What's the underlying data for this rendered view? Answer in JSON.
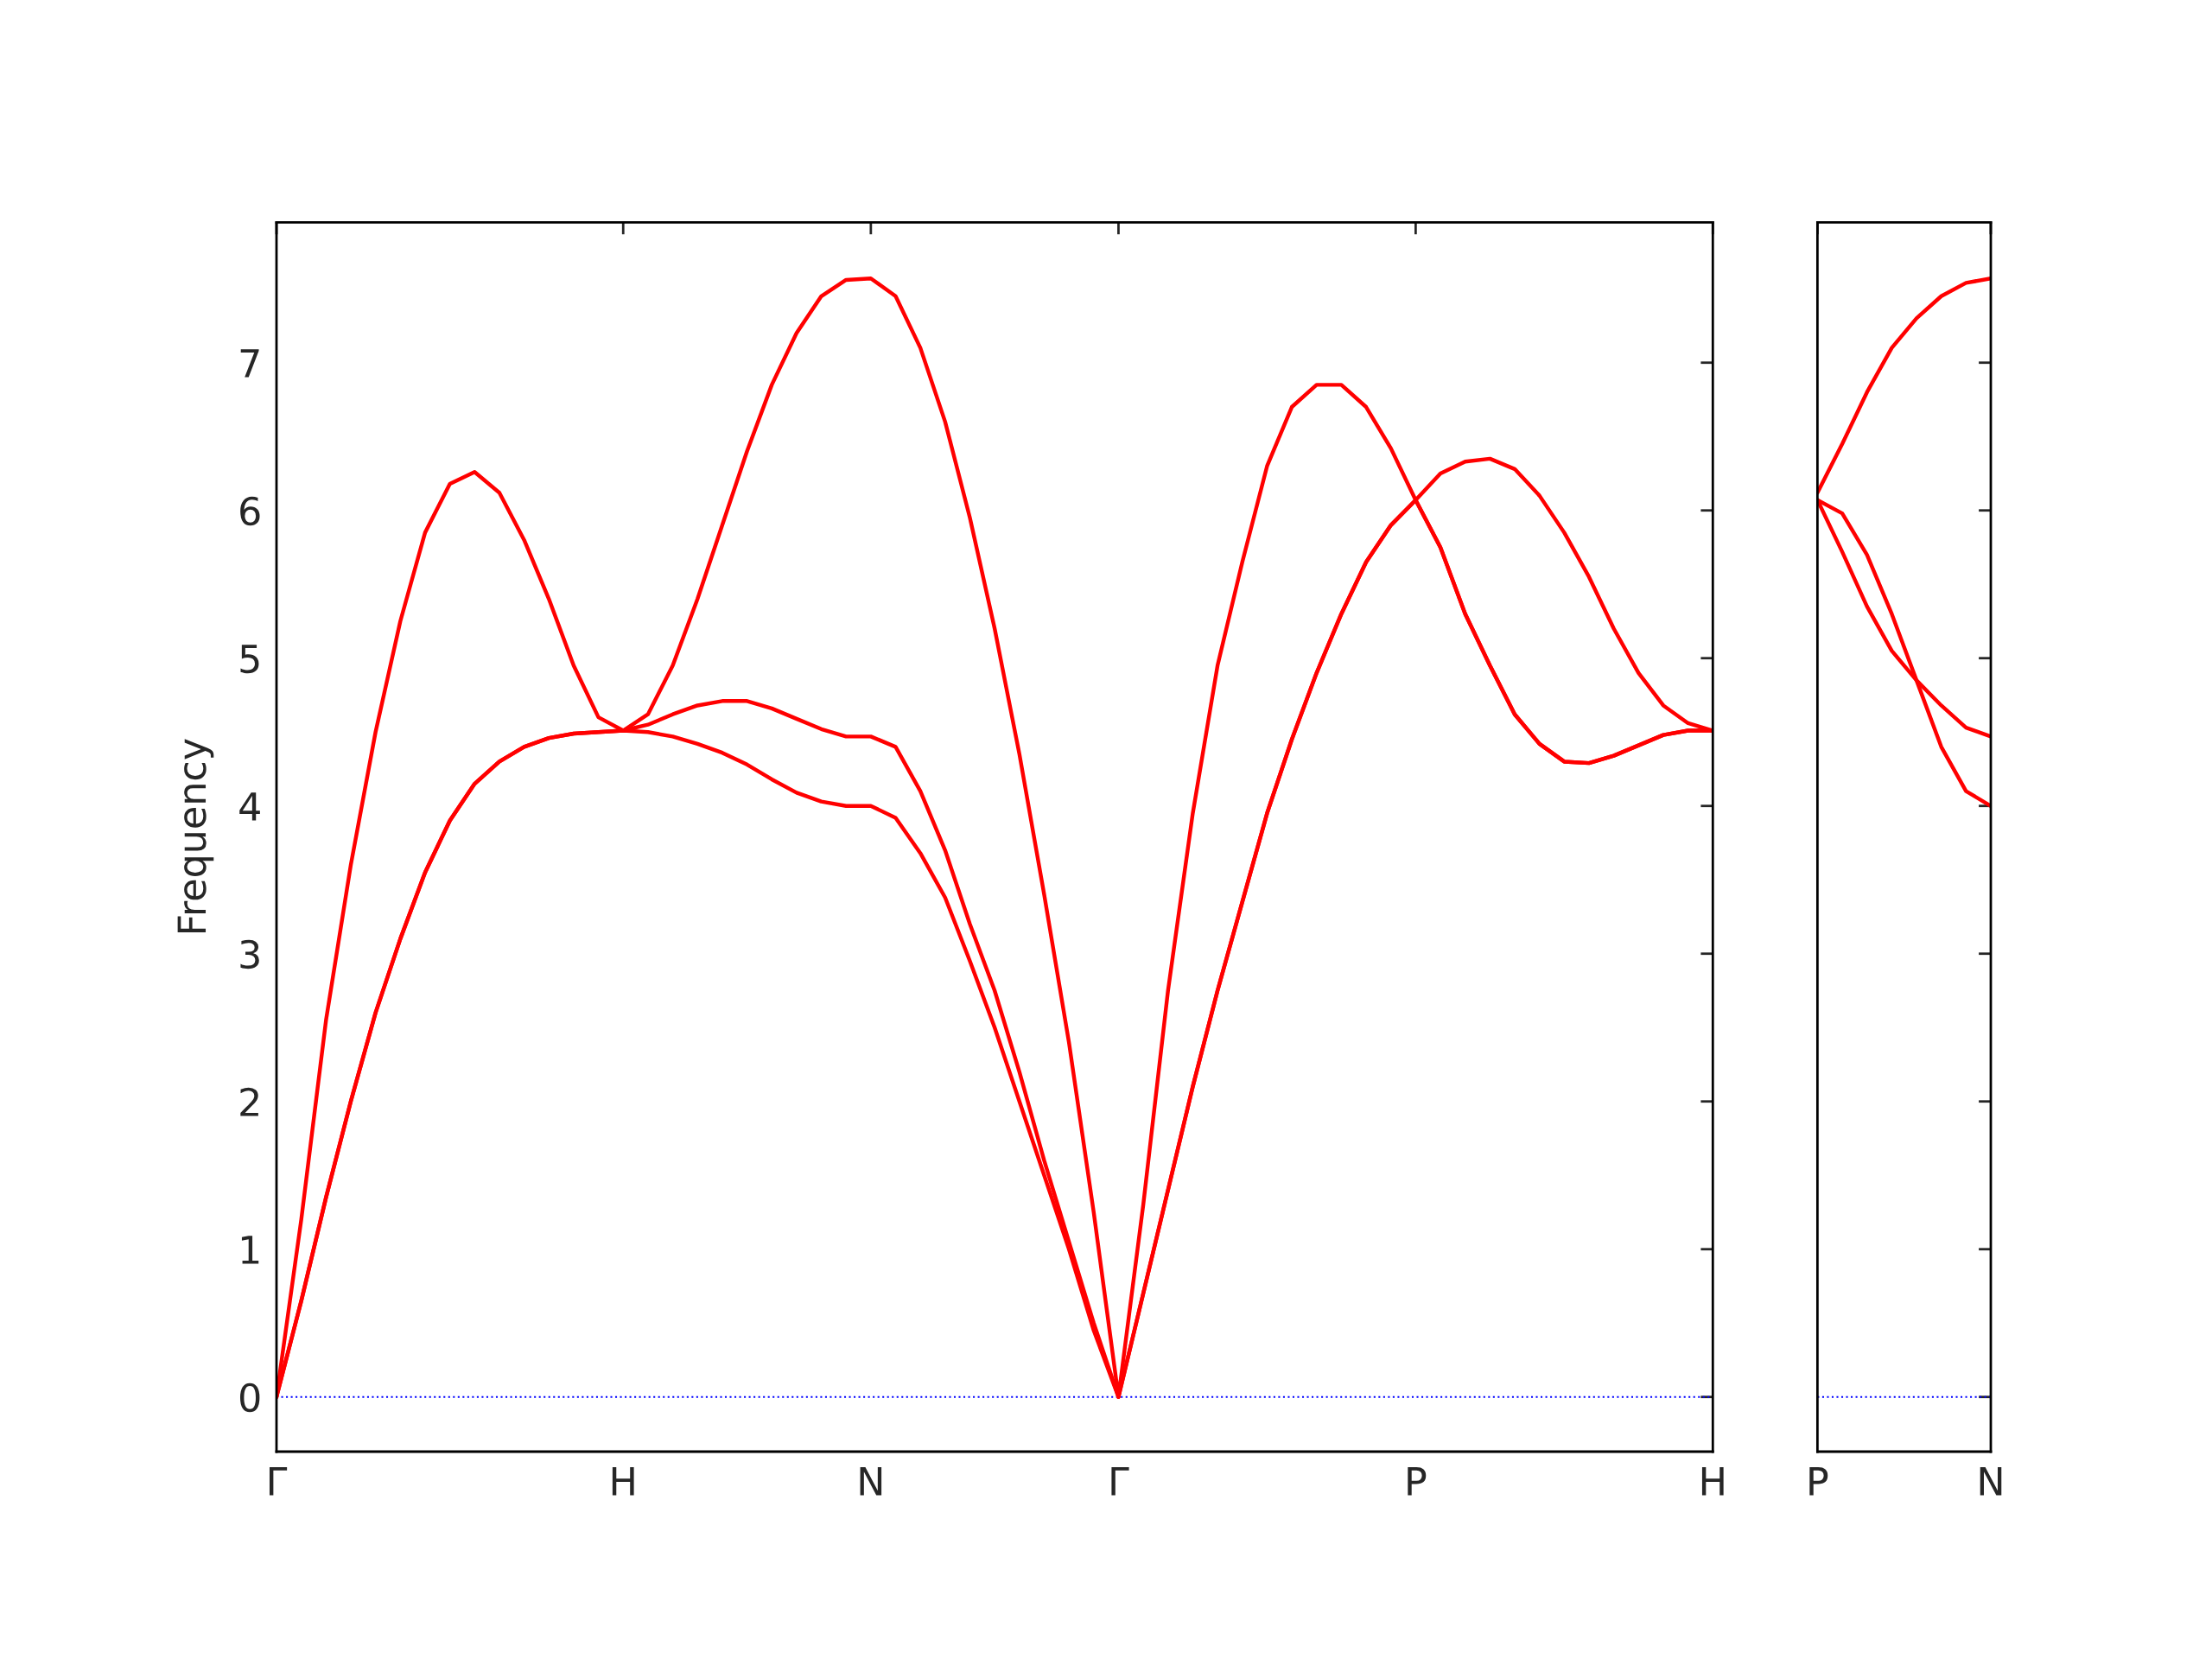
{
  "chart_data": [
    {
      "type": "line",
      "ylabel": "Frequency",
      "ylim": [
        -0.37,
        7.95
      ],
      "categories": [
        "Γ",
        null,
        null,
        null,
        null,
        null,
        null,
        null,
        null,
        null,
        null,
        null,
        null,
        null,
        "H",
        null,
        null,
        null,
        null,
        null,
        null,
        null,
        null,
        null,
        "N",
        null,
        null,
        null,
        null,
        null,
        null,
        null,
        null,
        null,
        "Γ",
        null,
        null,
        null,
        null,
        null,
        null,
        null,
        null,
        null,
        null,
        null,
        "P",
        null,
        null,
        null,
        null,
        null,
        null,
        null,
        null,
        null,
        null,
        null,
        "H"
      ],
      "yticks": [
        0,
        1,
        2,
        3,
        4,
        5,
        6,
        7
      ],
      "grid": false,
      "marker": "none",
      "line_style": "solid",
      "ref_lines": [
        {
          "axis": "y",
          "value": 0,
          "color": "#0000ff",
          "line_style": "dotted"
        }
      ],
      "series": [
        {
          "color": "#ff0000",
          "values": [
            0,
            0.65,
            1.35,
            2.0,
            2.6,
            3.1,
            3.55,
            3.9,
            4.15,
            4.3,
            4.4,
            4.46,
            4.49,
            4.5,
            4.51,
            4.5,
            4.47,
            4.42,
            4.36,
            4.28,
            4.18,
            4.09,
            4.03,
            4.0,
            4.0,
            3.92,
            3.68,
            3.38,
            2.95,
            2.5,
            2.0,
            1.5,
            1.0,
            0.45,
            0,
            0.7,
            1.4,
            2.1,
            2.75,
            3.35,
            3.95,
            4.45,
            4.9,
            5.3,
            5.65,
            5.9,
            6.07,
            5.75,
            5.3,
            4.95,
            4.62,
            4.42,
            4.3,
            4.29,
            4.34,
            4.41,
            4.48,
            4.51,
            4.51
          ]
        },
        {
          "color": "#ff0000",
          "values": [
            0,
            0.65,
            1.35,
            2.0,
            2.6,
            3.1,
            3.55,
            3.9,
            4.15,
            4.3,
            4.4,
            4.46,
            4.49,
            4.5,
            4.51,
            4.55,
            4.62,
            4.68,
            4.71,
            4.71,
            4.66,
            4.59,
            4.52,
            4.47,
            4.47,
            4.4,
            4.1,
            3.7,
            3.2,
            2.75,
            2.2,
            1.6,
            1.05,
            0.5,
            0,
            0.7,
            1.4,
            2.1,
            2.75,
            3.35,
            3.95,
            4.45,
            4.9,
            5.3,
            5.65,
            5.9,
            6.07,
            5.75,
            5.3,
            4.95,
            4.62,
            4.42,
            4.3,
            4.29,
            4.34,
            4.41,
            4.48,
            4.51,
            4.51
          ]
        },
        {
          "color": "#ff0000",
          "values": [
            0,
            1.2,
            2.55,
            3.6,
            4.5,
            5.25,
            5.85,
            6.18,
            6.26,
            6.12,
            5.8,
            5.4,
            4.95,
            4.6,
            4.51,
            4.62,
            4.95,
            5.4,
            5.9,
            6.4,
            6.85,
            7.2,
            7.45,
            7.56,
            7.57,
            7.45,
            7.1,
            6.6,
            5.95,
            5.2,
            4.35,
            3.4,
            2.4,
            1.25,
            0,
            1.3,
            2.75,
            3.95,
            4.95,
            5.65,
            6.3,
            6.7,
            6.85,
            6.85,
            6.7,
            6.42,
            6.07,
            6.25,
            6.33,
            6.35,
            6.28,
            6.1,
            5.85,
            5.55,
            5.2,
            4.9,
            4.68,
            4.56,
            4.51
          ]
        }
      ]
    },
    {
      "type": "line",
      "ylim": [
        -0.37,
        7.95
      ],
      "tick_labels": "x",
      "categories": [
        "P",
        null,
        null,
        null,
        null,
        null,
        null,
        "N"
      ],
      "yticks": [
        0,
        1,
        2,
        3,
        4,
        5,
        6,
        7
      ],
      "grid": false,
      "marker": "none",
      "line_style": "solid",
      "ref_lines": [
        {
          "axis": "y",
          "value": 0,
          "color": "#0000ff",
          "line_style": "dotted"
        }
      ],
      "series": [
        {
          "color": "#ff0000",
          "values": [
            6.07,
            5.72,
            5.35,
            5.05,
            4.85,
            4.4,
            4.1,
            4.0
          ]
        },
        {
          "color": "#ff0000",
          "values": [
            6.07,
            5.98,
            5.7,
            5.3,
            4.85,
            4.68,
            4.53,
            4.47
          ]
        },
        {
          "color": "#ff0000",
          "values": [
            6.12,
            6.45,
            6.8,
            7.1,
            7.3,
            7.45,
            7.54,
            7.57
          ]
        }
      ]
    }
  ]
}
